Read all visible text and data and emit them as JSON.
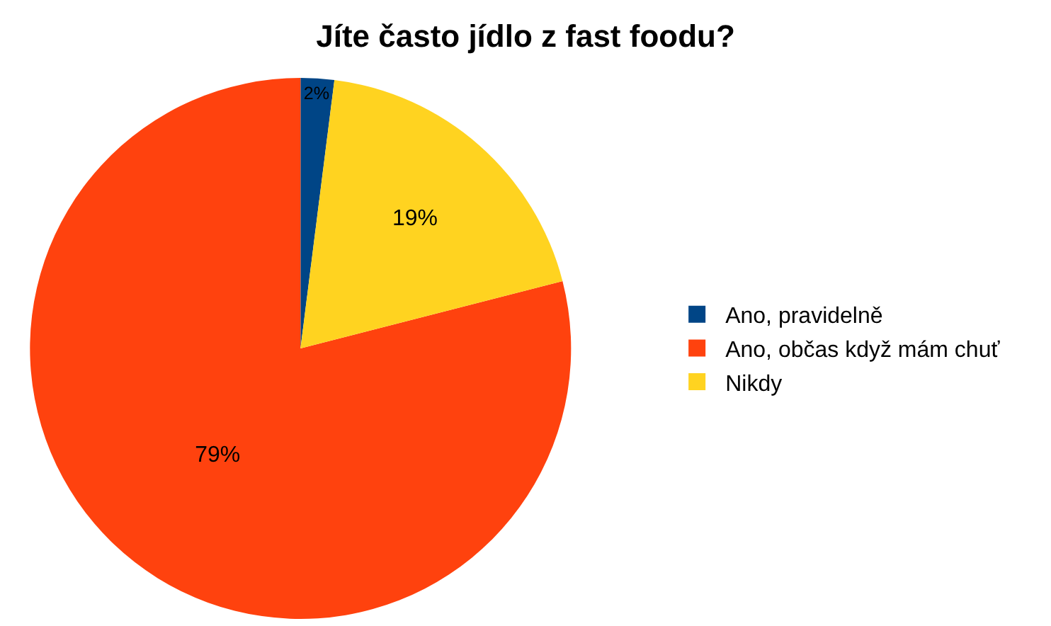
{
  "chart_data": {
    "type": "pie",
    "title": "Jíte často jídlo z fast foodu?",
    "categories": [
      "Ano, pravidelně",
      "Ano, občas když mám chuť",
      "Nikdy"
    ],
    "values": [
      2,
      79,
      19
    ],
    "value_labels": [
      "2%",
      "79%",
      "19%"
    ],
    "colors": [
      "#004586",
      "#ff420e",
      "#ffd320"
    ],
    "legend": "right"
  }
}
